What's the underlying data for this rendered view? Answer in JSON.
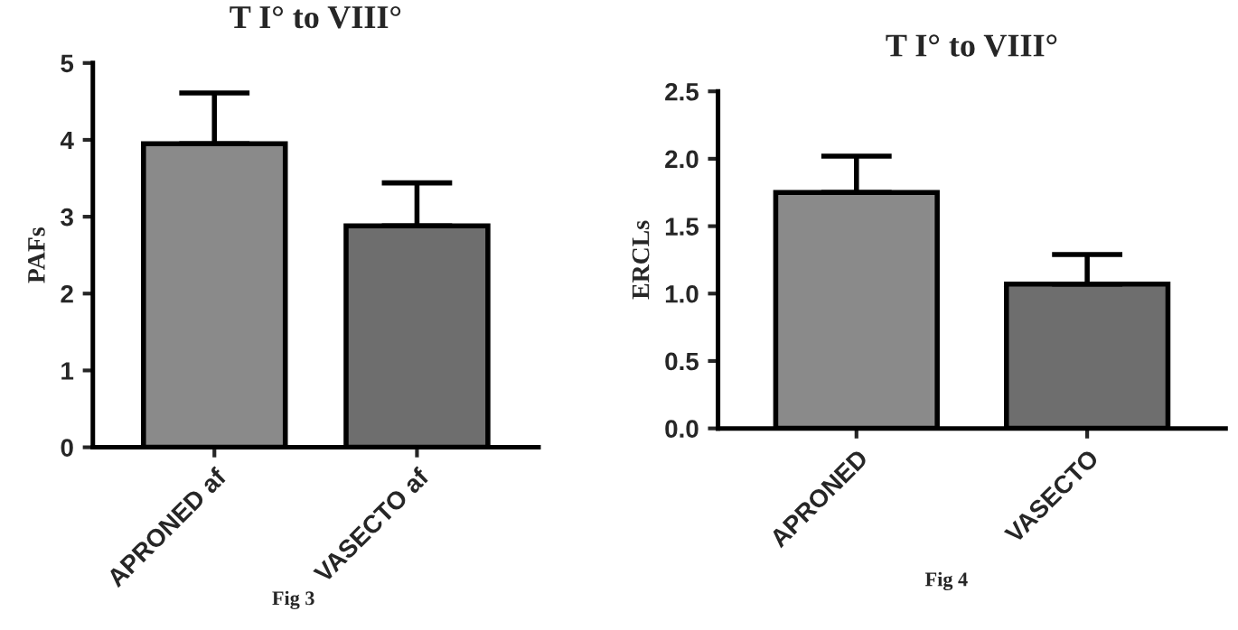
{
  "chart_data": [
    {
      "type": "bar",
      "title": "T I° to VIII°",
      "ylabel": "PAFs",
      "categories": [
        "APRONED af",
        "VASECTO af"
      ],
      "values": [
        3.95,
        2.88
      ],
      "colors": [
        "#8a8a8a",
        "#6e6e6e"
      ],
      "errors": [
        [
          3.95,
          4.61
        ],
        [
          2.88,
          3.44
        ]
      ],
      "ylim": [
        0,
        5
      ],
      "yticks": [
        0,
        1,
        2,
        3,
        4,
        5
      ],
      "grid": false,
      "annotations": [
        "Fig 3"
      ]
    },
    {
      "type": "bar",
      "title": "T I° to VIII°",
      "ylabel": "ERCLs",
      "categories": [
        "APRONED",
        "VASECTO"
      ],
      "values": [
        1.75,
        1.07
      ],
      "colors": [
        "#8a8a8a",
        "#6e6e6e"
      ],
      "errors": [
        [
          1.75,
          2.02
        ],
        [
          1.07,
          1.29
        ]
      ],
      "ylim": [
        0,
        2.5
      ],
      "yticks": [
        {
          "value": 0,
          "label": "0.0"
        },
        {
          "value": 0.5,
          "label": "0.5"
        },
        {
          "value": 1,
          "label": "1.0"
        },
        {
          "value": 1.5,
          "label": "1.5"
        },
        {
          "value": 2,
          "label": "2.0"
        },
        {
          "value": 2.5,
          "label": "2.5"
        }
      ],
      "grid": false,
      "annotations": [
        "Fig 4"
      ]
    }
  ]
}
